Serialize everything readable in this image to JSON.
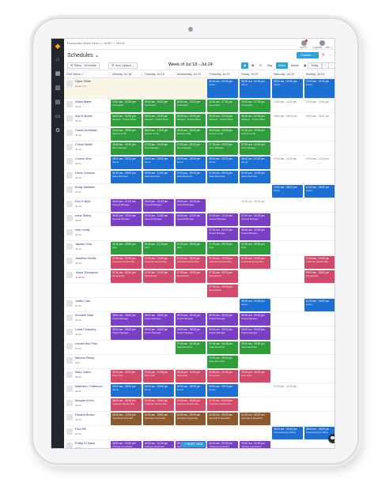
{
  "app": {
    "breadcrumb": "Restaurant Base Demo > 18257 > 28102",
    "title": "Schedules ⌄",
    "logo": "◆",
    "nav_icons": [
      "home-icon",
      "calendar-icon",
      "chart-icon",
      "clipboard-icon",
      "chat-icon",
      "settings-icon"
    ]
  },
  "topbar": {
    "account_top": "18257",
    "account_bottom": "Logouts ⌄   Me ⌄"
  },
  "toolbar": {
    "publish_label": "Publish ⌄",
    "filters_label": "☰ Filters · 28 results",
    "view_options_label": "☰ View Options ⌄",
    "week_label": "Week of Jul 18 - Jul 24",
    "day_label": "Day",
    "week_btn": "Week",
    "month_btn": "Month",
    "today_btn": "Today",
    "prev": "‹",
    "next": "›"
  },
  "columns": [
    "First Name ⇩",
    "Monday, Jul 18",
    "Tuesday, Jul 19",
    "Wednesday, Jul 20",
    "Thursday, Jul 21",
    "Friday, Jul 22",
    "Saturday, Jul 23",
    "Sunday, Jul 24"
  ],
  "colors": {
    "green": "#2e9d3a",
    "blue": "#1d6fd1",
    "purple": "#7b3fc6",
    "teal": "#1e9aa6",
    "red": "#d14a6b",
    "grey": "#8a8f96",
    "olive": "#6f7f2c",
    "brown": "#8a5a2c"
  },
  "rows": [
    {
      "name": "Open Shifts",
      "sub": "Hours: 2.0",
      "open": true,
      "cells": [
        null,
        null,
        null,
        {
          "t": "08:30 am - 04:30 pm",
          "r": "Server",
          "c": "blue"
        },
        {
          "t": "08:30 am - 04:30 pm",
          "r": "Server",
          "c": "blue"
        },
        {
          "t": "08:30 am - 04:30 pm",
          "r": "Server",
          "c": "blue"
        },
        {
          "t": "07:00 am - 02:30 pm",
          "r": "Server",
          "c": "blue"
        }
      ]
    },
    {
      "name": "Adam Blake",
      "sub": "40.00",
      "cells": [
        {
          "t": "10:00 am - 02:00 pm",
          "r": "Accountant",
          "c": "green"
        },
        {
          "t": "09:00 am - 05:00 pm",
          "r": "Accountant",
          "c": "green"
        },
        {
          "t": "10:00 am - 07:00 pm",
          "r": "Accountant",
          "c": "green"
        },
        {
          "t": "11:30 am - 07:30 pm",
          "r": "Accountant",
          "c": "green"
        },
        {
          "t": "10:00 am - 07:30 pm",
          "r": "Accountant",
          "c": "green"
        },
        {
          "t": "12:00 pm - 11:00 pm",
          "r": "",
          "c": "txt"
        },
        {
          "t": "12:00 pm - 10:00 pm",
          "r": "",
          "c": "txt"
        }
      ]
    },
    {
      "name": "Ava M Burke",
      "sub": "40.00",
      "cells": [
        {
          "t": "06:00 am - 02:00 pm",
          "r": "Manager - Project Mana",
          "c": "green"
        },
        {
          "t": "06:00 am - 02:00 pm",
          "r": "Manager - Project Mana",
          "c": "green"
        },
        {
          "t": "06:00 am - 02:00 pm",
          "r": "Manager - Project Mana",
          "c": "green"
        },
        {
          "t": "06:00 am - 02:00 pm",
          "r": "Manager - Project Mana",
          "c": "green"
        },
        {
          "t": "06:00 am - 02:00 pm",
          "r": "Manager - Project Mana",
          "c": "green"
        },
        {
          "t": "09:00 am - 05:00 pm",
          "r": "",
          "c": "txt"
        },
        {
          "t": "09:00 am - 05:00 pm",
          "r": "",
          "c": "txt"
        }
      ]
    },
    {
      "name": "Carlos Archibalo",
      "sub": "40.00",
      "cells": [
        {
          "t": "10:00 am - 06:00 pm",
          "r": "Director of HR",
          "c": "green"
        },
        {
          "t": "08:00 am - 12:00 pm",
          "r": "Director of HR",
          "c": "green"
        },
        {
          "t": "08:00 am - 04:00 pm",
          "r": "Director of HR",
          "c": "green"
        },
        {
          "t": "08:00 am - 04:00 pm",
          "r": "Director of HR",
          "c": "green"
        },
        {
          "t": "01:00 pm - 09:00 pm",
          "r": "Director of HR",
          "c": "green"
        },
        null,
        null
      ]
    },
    {
      "name": "Christi Nadel",
      "sub": "40.00",
      "cells": [
        {
          "t": "06:45 am - 03:45 pm",
          "r": "Store Manager",
          "c": "green"
        },
        {
          "t": "07:00 am - 04:00 pm",
          "r": "Store Manager",
          "c": "green"
        },
        {
          "t": "07:00 am - 04:00 pm",
          "r": "Store Manager",
          "c": "green"
        },
        {
          "t": "07:00 am - 04:00 pm",
          "r": "Store Manager",
          "c": "green"
        },
        {
          "t": "07:00 am - 04:00 pm",
          "r": "Store Manager",
          "c": "green"
        },
        null,
        null
      ]
    },
    {
      "name": "Connie Won",
      "sub": "40.00",
      "cells": [
        {
          "t": "08:00 am - 05:00 pm",
          "r": "Server",
          "c": "blue"
        },
        {
          "t": "09:00 am - 05:00 pm",
          "r": "Server",
          "c": "blue"
        },
        {
          "t": "08:00 am - 04:00 pm",
          "r": "Server",
          "c": "blue"
        },
        {
          "t": "08:00 am - 04:00 pm",
          "r": "Server",
          "c": "blue"
        },
        {
          "t": "08:00 am - 04:00 pm",
          "r": "Server",
          "c": "blue"
        },
        {
          "t": "07:00 am - 11:00 pm",
          "r": "",
          "c": "txt"
        },
        {
          "t": "07:00 am - 11:00 pm",
          "r": "",
          "c": "txt"
        }
      ]
    },
    {
      "name": "Devin Johnson",
      "sub": "40.00",
      "cells": [
        {
          "t": "01:30 pm - 09:00 pm",
          "r": "Sales Executive",
          "c": "blue"
        },
        {
          "t": "09:00 am - 12:00 pm",
          "r": "Sales Executive",
          "c": "blue"
        },
        {
          "t": "01:00 pm - 09:00 pm",
          "r": "Sales Executive",
          "c": "blue"
        },
        {
          "t": "01:00 pm - 09:00 pm",
          "r": "Sales Executive",
          "c": "blue"
        },
        {
          "t": "01:00 pm - 10:00 pm",
          "r": "Sales Executive",
          "c": "blue"
        },
        null,
        null
      ]
    },
    {
      "name": "Emily Matthew",
      "sub": "16.00",
      "cells": [
        null,
        null,
        null,
        null,
        null,
        {
          "t": "10:00 am - 06:00 pm",
          "r": "Server",
          "c": "blue"
        },
        {
          "t": "10:00 am - 06:00 pm",
          "r": "Server",
          "c": "blue"
        }
      ]
    },
    {
      "name": "Eva G Byrd",
      "sub": "40.00",
      "cells": [
        {
          "t": "04:00 pm - 01:00 am",
          "r": "General Manager",
          "c": "purple"
        },
        {
          "t": "04:00 pm - 01:00 am",
          "r": "General Manager",
          "c": "purple"
        },
        {
          "t": "04:00 pm - 01:00 am",
          "r": "General Manager",
          "c": "purple"
        },
        null,
        {
          "t": "12:00 pm - 11:00 pm",
          "r": "",
          "c": "txt"
        },
        null,
        null
      ]
    },
    {
      "name": "Irene Ridley",
      "sub": "40.00",
      "cells": [
        {
          "t": "04:00 pm - 12:00 am",
          "r": "General Manager",
          "c": "purple"
        },
        {
          "t": "04:00 pm - 12:00 am",
          "r": "General Manager",
          "c": "purple"
        },
        {
          "t": "04:00 pm - 12:00 am",
          "r": "General Manager",
          "c": "purple"
        },
        {
          "t": "04:00 pm - 12:00 am",
          "r": "General Manager",
          "c": "purple"
        },
        {
          "t": "07:00 am - 04:00 pm",
          "r": "General Manager",
          "c": "purple"
        },
        null,
        null
      ]
    },
    {
      "name": "Ivan Leddy",
      "sub": "40.00",
      "cells": [
        null,
        null,
        null,
        {
          "t": "07:00 am - 04:00 pm",
          "r": "Project Manager",
          "c": "purple"
        },
        {
          "t": "05:00 am - 02:00 pm",
          "r": "Project Manager",
          "c": "purple"
        },
        null,
        null
      ]
    },
    {
      "name": "Jayden Ortiz",
      "sub": "40.00",
      "cells": [
        {
          "t": "01:30 pm - 09:00 pm",
          "r": "Host",
          "c": "green"
        },
        {
          "t": "04:30 pm - 11:30 pm",
          "r": "Host",
          "c": "green"
        },
        {
          "t": "01:30 pm - 09:00 pm",
          "r": "Host",
          "c": "green"
        },
        {
          "t": "01:30 pm - 09:00 pm",
          "r": "Host",
          "c": "green"
        },
        {
          "t": "01:30 pm - 09:00 pm",
          "r": "Host",
          "c": "green"
        },
        null,
        null
      ]
    },
    {
      "name": "Josefina Sevilla",
      "sub": "40.00",
      "cells": [
        {
          "t": "07:00 am - 03:00 pm",
          "r": "Customer Service Rep",
          "c": "red"
        },
        {
          "t": "07:00 am - 04:00 pm",
          "r": "Customer Service Rep",
          "c": "red"
        },
        {
          "t": "07:00 am - 04:00 pm",
          "r": "Customer Service Rep",
          "c": "red"
        },
        {
          "t": "07:00 am - 04:00 pm",
          "r": "Customer Service Rep",
          "c": "red"
        },
        {
          "t": "07:00 am - 04:00 pm",
          "r": "Customer Service Rep",
          "c": "red"
        },
        null,
        {
          "t": "07:00 am - 03:00 pm",
          "r": "Customer Service Rep",
          "c": "red"
        }
      ]
    },
    {
      "name": "Jonas Thompson",
      "sub": "▲ 48 hrs",
      "warn": true,
      "cells": [
        {
          "t": "07:30 am - 03:30 pm",
          "r": "Receptionist",
          "c": "red"
        },
        {
          "t": "07:30 am - 03:30 pm",
          "r": "Receptionist",
          "c": "red"
        },
        {
          "t": "07:30 am - 03:30 pm",
          "r": "Receptionist",
          "c": "red"
        },
        {
          "t": "07:30 am - 03:30 pm",
          "r": "Receptionist",
          "c": "red"
        },
        null,
        null,
        {
          "t": "09:00 am - 05:00 pm",
          "r": "Receptionist",
          "c": "red"
        }
      ]
    },
    {
      "name": "",
      "sub": "",
      "cells": [
        null,
        null,
        null,
        {
          "t": "07:00 am - 03:00 pm",
          "r": "Receptionist",
          "c": "red"
        },
        null,
        null,
        null
      ]
    },
    {
      "name": "Judith Cale",
      "sub": "16.00",
      "cells": [
        null,
        null,
        null,
        null,
        {
          "t": "08:00 am - 04:00 pm",
          "r": "Server",
          "c": "blue"
        },
        null,
        {
          "t": "10:00 am - 04:00 pm",
          "r": "Server",
          "c": "blue"
        }
      ]
    },
    {
      "name": "Kenneth Blair",
      "sub": "40.00",
      "cells": [
        {
          "t": "09:00 am - 05:00 pm",
          "r": "Project Manager",
          "c": "purple"
        },
        {
          "t": "09:00 am - 05:00 pm",
          "r": "Project Manager",
          "c": "purple"
        },
        {
          "t": "09:00 am - 05:00 pm",
          "r": "Project Manager",
          "c": "purple"
        },
        {
          "t": "09:00 am - 05:00 pm",
          "r": "Project Manager",
          "c": "purple"
        },
        {
          "t": "09:00 am - 05:00 pm",
          "r": "Project Manager",
          "c": "purple"
        },
        null,
        null
      ]
    },
    {
      "name": "Linda Chassery",
      "sub": "40.00",
      "cells": [
        {
          "t": "09:00 am - 05:00 pm",
          "r": "Project Manager",
          "c": "purple"
        },
        {
          "t": "09:00 am - 05:00 pm",
          "r": "Project Manager",
          "c": "purple"
        },
        {
          "t": "09:00 am - 05:00 pm",
          "r": "Project Manager",
          "c": "purple"
        },
        {
          "t": "09:00 am - 05:00 pm",
          "r": "Project Manager",
          "c": "purple"
        },
        {
          "t": "09:00 am - 05:00 pm",
          "r": "Project Manager",
          "c": "purple"
        },
        null,
        null
      ]
    },
    {
      "name": "Lucida Mac Pine",
      "sub": "24.00",
      "cells": [
        null,
        null,
        {
          "t": "07:45 am - 04:45 pm",
          "r": "Sales Executive",
          "c": "green"
        },
        {
          "t": "07:45 am - 04:45 pm",
          "r": "Sales Executive",
          "c": "green"
        },
        {
          "t": "09:00 am - 05:00 pm",
          "r": "Sales Executive",
          "c": "green"
        },
        null,
        null
      ]
    },
    {
      "name": "Marcus Pitney",
      "sub": "8.00",
      "cells": [
        null,
        null,
        null,
        {
          "t": "12:00 pm - 08:00 pm",
          "r": "Sales Executive",
          "c": "green"
        },
        null,
        null,
        null
      ]
    },
    {
      "name": "Mary Gates",
      "sub": "40.00",
      "cells": [
        {
          "t": "03:00 pm - 11:00 pm",
          "r": "Prep Cook",
          "c": "red"
        },
        {
          "t": "03:00 pm - 11:00 pm",
          "r": "Prep Cook",
          "c": "red"
        },
        {
          "t": "03:00 pm - 11:00 pm",
          "r": "Prep Cook",
          "c": "red"
        },
        {
          "t": "03:00 pm - 11:00 pm",
          "r": "Prep Cook",
          "c": "red"
        },
        {
          "t": "03:00 pm - 11:00 pm",
          "r": "Prep Cook",
          "c": "red"
        },
        null,
        null
      ]
    },
    {
      "name": "Matthew L Patterson",
      "sub": "40.00",
      "cells": [
        {
          "t": "09:00 am - 06:00 pm",
          "r": "Server",
          "c": "blue"
        },
        {
          "t": "09:00 am - 06:00 pm",
          "r": "Server",
          "c": "blue"
        },
        {
          "t": "09:00 am - 06:00 pm",
          "r": "Server",
          "c": "blue"
        },
        {
          "t": "09:00 am - 05:00 pm",
          "r": "Server",
          "c": "blue"
        },
        null,
        {
          "t": "07:00 pm - 11:30 pm",
          "r": "",
          "c": "txt"
        },
        null
      ]
    },
    {
      "name": "Morgan A Kim",
      "sub": "40.00",
      "cells": [
        {
          "t": "06:00 am - 04:00 pm",
          "r": "Customer Service Rep",
          "c": "red"
        },
        {
          "t": "07:00 am - 04:00 pm",
          "r": "Customer Service Rep",
          "c": "red"
        },
        {
          "t": "07:00 am - 04:00 pm",
          "r": "Customer Service Rep",
          "c": "red"
        },
        {
          "t": "07:00 am - 04:00 pm",
          "r": "Customer Service Rep",
          "c": "red"
        },
        null,
        null,
        null
      ]
    },
    {
      "name": "Pamela Brown",
      "sub": "40.00",
      "cells": [
        {
          "t": "04:00 am - 12:00 pm",
          "r": "Operations Specialist",
          "c": "brown"
        },
        {
          "t": "01:00 am - 09:00 am",
          "r": "Operations Specialist",
          "c": "brown"
        },
        {
          "t": "01:00 am - 09:00 am",
          "r": "Operations Specialist",
          "c": "brown"
        },
        {
          "t": "01:00 am - 09:00 am",
          "r": "Operations Specialist",
          "c": "brown"
        },
        {
          "t": "01:00 am - 09:00 am",
          "r": "Operations Specialist",
          "c": "brown"
        },
        null,
        null
      ]
    },
    {
      "name": "Paul Hill",
      "sub": "16.00",
      "cells": [
        null,
        null,
        null,
        null,
        null,
        {
          "t": "06:00 am - 05:45 pm",
          "r": "Chief Executive Officer",
          "c": "blue"
        },
        {
          "t": "06:00 am - 06:00 pm",
          "r": "Chief Executive Officer",
          "c": "blue"
        }
      ]
    },
    {
      "name": "Phillip Dl Narlo",
      "sub": "40.00",
      "cells": [
        {
          "t": "06:30 am - 02:30 pm",
          "r": "Training Coordinator",
          "c": "purple"
        },
        {
          "t": "06:30 am - 02:30 pm",
          "r": "Training Coordinator",
          "c": "purple"
        },
        {
          "t": "06:30 am - 02:30 pm",
          "r": "Training Coordinator",
          "c": "purple"
        },
        {
          "t": "06:30 am - 02:30 pm",
          "r": "Training Coordinator",
          "c": "purple"
        },
        {
          "t": "06:30 am - 02:30 pm",
          "r": "Training Coordinator",
          "c": "purple"
        },
        null,
        null
      ]
    },
    {
      "name": "Rosa Bluet",
      "sub": "16.00",
      "cells": [
        null,
        null,
        null,
        {
          "t": "05:00 pm - 10:00 pm",
          "r": "Prep Cook",
          "c": "red"
        },
        {
          "t": "05:00 pm - 10:00 pm",
          "r": "Prep Cook",
          "c": "red"
        },
        null,
        null
      ]
    },
    {
      "name": "Samantha Williams",
      "sub": "16.00",
      "cells": [
        null,
        null,
        null,
        {
          "t": "08:30 am - 03:30 pm",
          "r": "Training Specialist",
          "c": "red"
        },
        {
          "t": "08:30 am - 03:30 pm",
          "r": "Training Specialist",
          "c": "red"
        },
        null,
        null
      ]
    },
    {
      "name": "Simon Wen Colls",
      "sub": "40.00",
      "cells": [
        {
          "t": "06:00 am - 03:45 pm",
          "r": "Operations Specialist",
          "c": "brown"
        },
        {
          "t": "06:00 am - 03:45 pm",
          "r": "Operations Specialist",
          "c": "brown"
        },
        {
          "t": "06:00 am - 03:45 pm",
          "r": "Operations Specialist",
          "c": "brown"
        },
        {
          "t": "06:00 am - 03:45 pm",
          "r": "Operations Specialist",
          "c": "brown"
        },
        {
          "t": "06:00 am - 03:45 pm",
          "r": "Operations Specialist",
          "c": "brown"
        },
        null,
        null
      ]
    }
  ],
  "fab_label": "+ SHIFT VIEW",
  "chat_icon": "💬"
}
